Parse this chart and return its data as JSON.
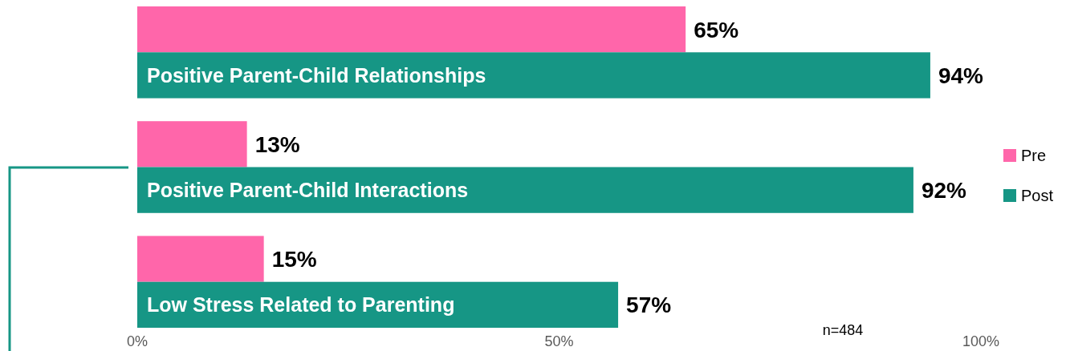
{
  "chart_data": {
    "type": "bar",
    "orientation": "horizontal",
    "categories": [
      "Positive Parent-Child Relationships",
      "Positive Parent-Child Interactions",
      "Low Stress Related to Parenting"
    ],
    "series": [
      {
        "name": "Pre",
        "color": "#ff66aa",
        "values": [
          65,
          13,
          15
        ],
        "value_labels": [
          "65%",
          "13%",
          "15%"
        ]
      },
      {
        "name": "Post",
        "color": "#169685",
        "values": [
          94,
          92,
          57
        ],
        "value_labels": [
          "94%",
          "92%",
          "57%"
        ]
      }
    ],
    "xlim": [
      0,
      100
    ],
    "xticks": [
      {
        "value": 0,
        "label": "0%"
      },
      {
        "value": 50,
        "label": "50%"
      },
      {
        "value": 100,
        "label": "100%"
      }
    ],
    "legend": "right",
    "grid": false,
    "annotations": [
      "n=484"
    ]
  }
}
